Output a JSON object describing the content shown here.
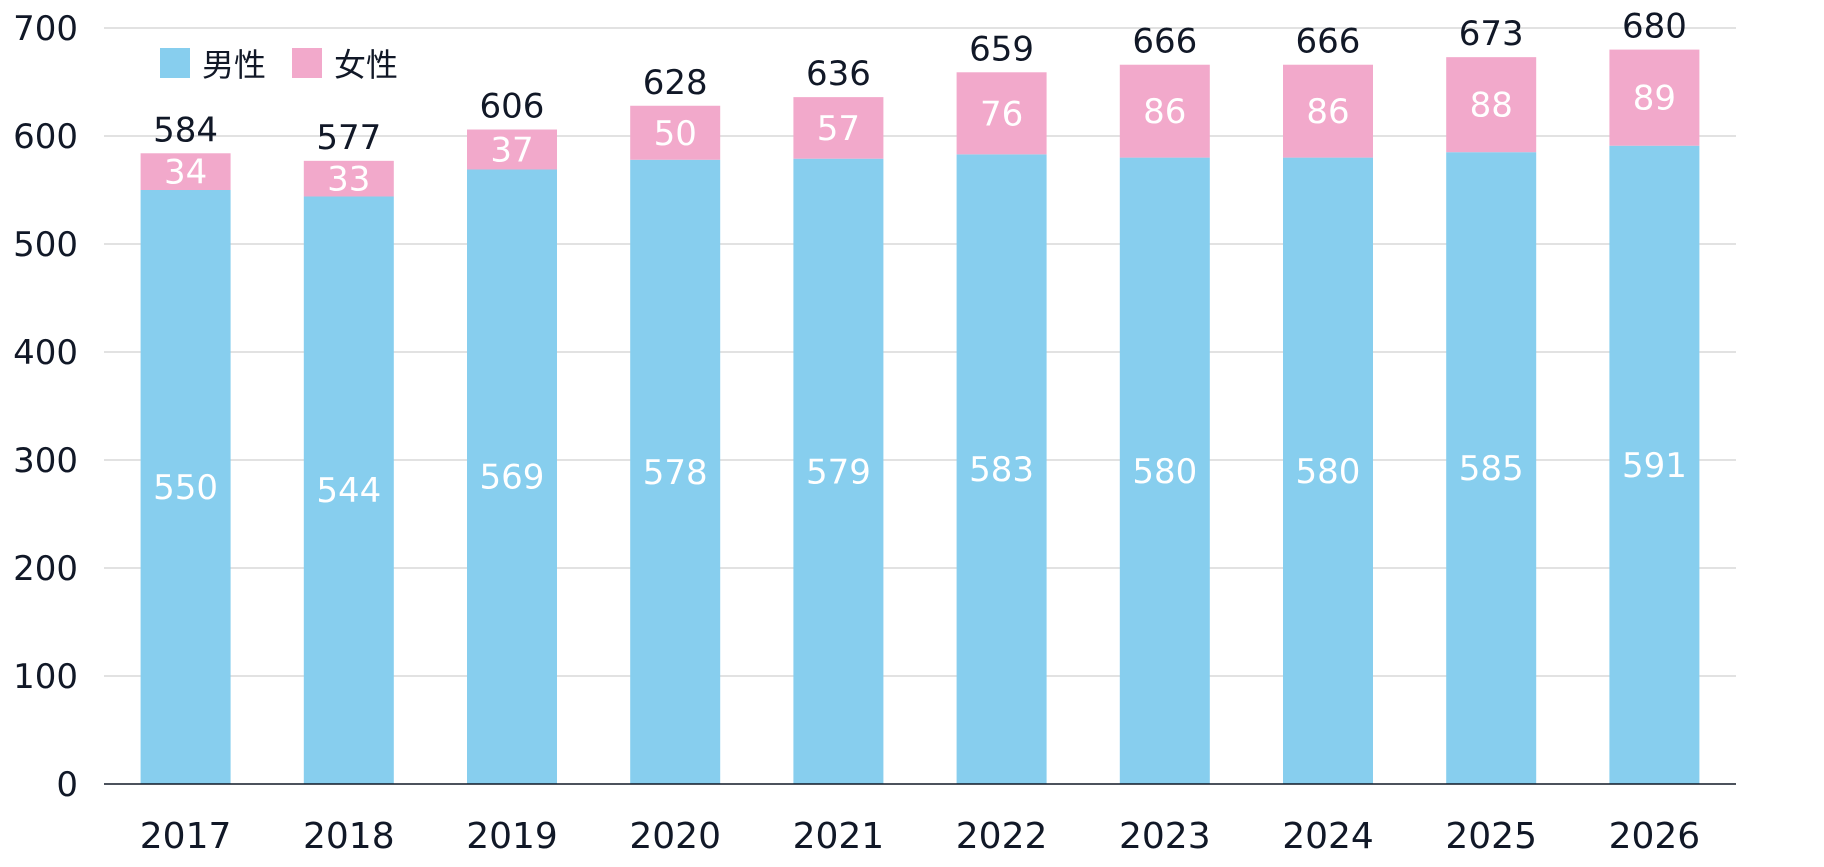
{
  "colors": {
    "male": "#87CEEE",
    "female": "#F2A9CB",
    "grid": "#D9D9D9",
    "axis": "#111827",
    "text": "#111827",
    "segment_text": "#FFFFFF"
  },
  "legend": {
    "items": [
      {
        "label": "男性",
        "color": "#87CEEE"
      },
      {
        "label": "女性",
        "color": "#F2A9CB"
      }
    ]
  },
  "chart_data": {
    "type": "bar",
    "stacked": true,
    "categories": [
      "2017",
      "2018",
      "2019",
      "2020",
      "2021",
      "2022",
      "2023",
      "2024",
      "2025",
      "2026"
    ],
    "series": [
      {
        "name": "男性",
        "values": [
          550,
          544,
          569,
          578,
          579,
          583,
          580,
          580,
          585,
          591
        ]
      },
      {
        "name": "女性",
        "values": [
          34,
          33,
          37,
          50,
          57,
          76,
          86,
          86,
          88,
          89
        ]
      }
    ],
    "totals": [
      584,
      577,
      606,
      628,
      636,
      659,
      666,
      666,
      673,
      680
    ],
    "ylim": [
      0,
      700
    ],
    "yticks": [
      0,
      100,
      200,
      300,
      400,
      500,
      600,
      700
    ],
    "grid": true,
    "legend_position": "top-left"
  }
}
